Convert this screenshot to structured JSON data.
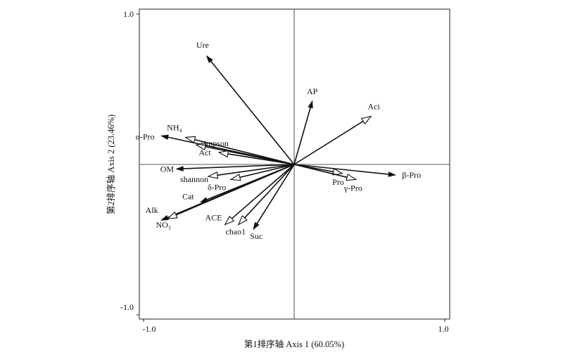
{
  "chart_data": {
    "type": "biplot",
    "xlabel": "第1排序轴 Axis 1 (60.05%)",
    "ylabel": "第2排序轴 Axis 2 (23.46%)",
    "xlim": [
      -1.0,
      1.0
    ],
    "ylim": [
      -1.0,
      1.0
    ],
    "x_ticks": [
      "-1.0",
      "1.0"
    ],
    "y_ticks": [
      "1.0",
      "-1.0"
    ],
    "grid": false,
    "zero_lines": true,
    "species": [
      {
        "label": "Ure",
        "x": -0.58,
        "y": 0.72
      },
      {
        "label": "AP",
        "x": 0.12,
        "y": 0.42
      },
      {
        "label": "α-Pro",
        "x": -0.88,
        "y": 0.19
      },
      {
        "label": "OM",
        "x": -0.78,
        "y": -0.03
      },
      {
        "label": "Cat",
        "x": -0.62,
        "y": -0.25
      },
      {
        "label": "Alk",
        "x": -0.88,
        "y": -0.37
      },
      {
        "label": "Suc",
        "x": -0.27,
        "y": -0.43
      },
      {
        "label": "β-Pro",
        "x": 0.67,
        "y": -0.07
      }
    ],
    "environment": [
      {
        "label": "Aci",
        "x": 0.51,
        "y": 0.32
      },
      {
        "label": "NH₄",
        "x": -0.72,
        "y": 0.18
      },
      {
        "label": "simpson",
        "x": -0.65,
        "y": 0.13
      },
      {
        "label": "Act",
        "x": -0.5,
        "y": 0.08
      },
      {
        "label": "shannon",
        "x": -0.57,
        "y": -0.08
      },
      {
        "label": "δ-Pro",
        "x": -0.42,
        "y": -0.1
      },
      {
        "label": "NO₃",
        "x": -0.84,
        "y": -0.36
      },
      {
        "label": "ACE",
        "x": -0.46,
        "y": -0.4
      },
      {
        "label": "chao1",
        "x": -0.37,
        "y": -0.4
      },
      {
        "label": "Pro",
        "x": 0.32,
        "y": -0.06
      },
      {
        "label": "γ-Pro",
        "x": 0.41,
        "y": -0.1
      }
    ]
  }
}
